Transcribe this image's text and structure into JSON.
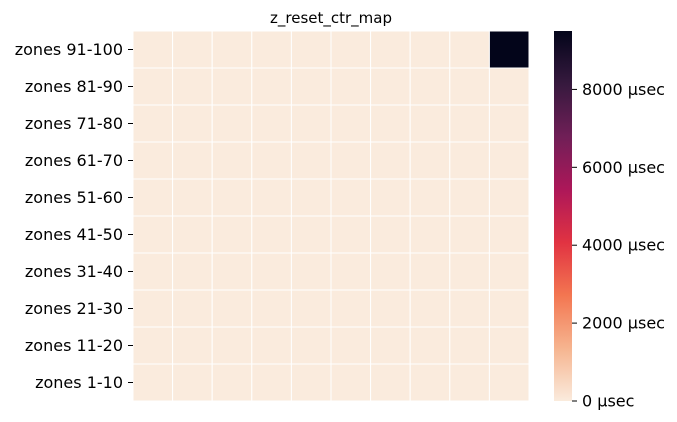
{
  "chart_data": {
    "type": "heatmap",
    "title": "z_reset_ctr_map",
    "xlabel": "",
    "ylabel": "",
    "rows": [
      "zones 91-100",
      "zones 81-90",
      "zones 71-80",
      "zones 61-70",
      "zones 51-60",
      "zones 41-50",
      "zones 31-40",
      "zones 21-30",
      "zones 11-20",
      "zones 1-10"
    ],
    "columns_count": 10,
    "values": [
      [
        0,
        0,
        0,
        0,
        0,
        0,
        0,
        0,
        0,
        9500
      ],
      [
        0,
        0,
        0,
        0,
        0,
        0,
        0,
        0,
        0,
        0
      ],
      [
        0,
        0,
        0,
        0,
        0,
        0,
        0,
        0,
        0,
        0
      ],
      [
        0,
        0,
        0,
        0,
        0,
        0,
        0,
        0,
        0,
        0
      ],
      [
        0,
        0,
        0,
        0,
        0,
        0,
        0,
        0,
        0,
        0
      ],
      [
        0,
        0,
        0,
        0,
        0,
        0,
        0,
        0,
        0,
        0
      ],
      [
        0,
        0,
        0,
        0,
        0,
        0,
        0,
        0,
        0,
        0
      ],
      [
        0,
        0,
        0,
        0,
        0,
        0,
        0,
        0,
        0,
        0
      ],
      [
        0,
        0,
        0,
        0,
        0,
        0,
        0,
        0,
        0,
        0
      ],
      [
        0,
        0,
        0,
        0,
        0,
        0,
        0,
        0,
        0,
        0
      ]
    ],
    "colorbar": {
      "min": 0,
      "max": 9500,
      "ticks": [
        0,
        2000,
        4000,
        6000,
        8000
      ],
      "tick_labels": [
        "0 µsec",
        "2000 µsec",
        "4000 µsec",
        "6000 µsec",
        "8000 µsec"
      ],
      "colormap": "rocket_r",
      "colors": [
        "#faebdd",
        "#f6b48f",
        "#f37651",
        "#e13342",
        "#ad1759",
        "#701f57",
        "#36193e",
        "#03051a"
      ]
    },
    "cell_border_color": "#ffffff"
  }
}
